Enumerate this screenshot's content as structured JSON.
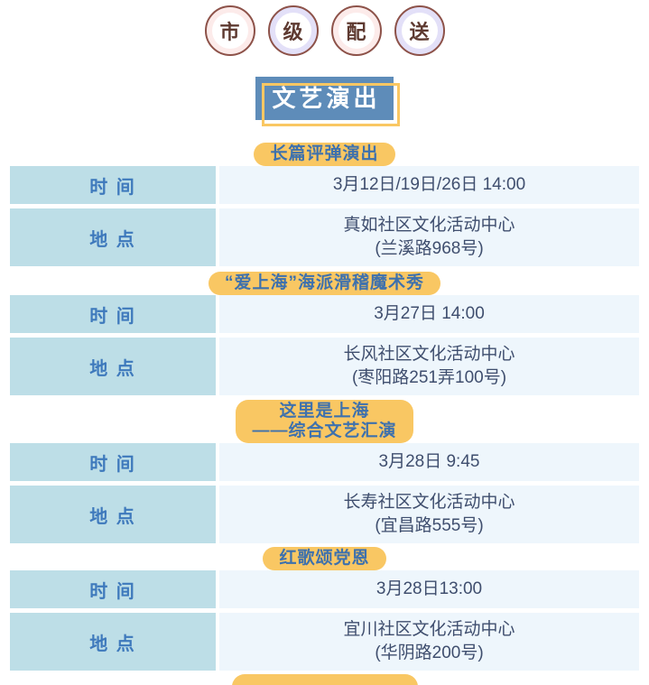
{
  "colors": {
    "header_blue": "#5e8cb9",
    "accent_yellow": "#f9c763",
    "label_cell_bg": "#bddee7",
    "value_cell_bg": "#eef6fc",
    "label_text": "#3e79bc",
    "badge_text": "#3e71ad",
    "value_text": "#3f4e6e",
    "circle_pink": "#fcebea",
    "circle_lavender": "#e3e0f8",
    "circle_border": "#8d5249",
    "circle_text": "#5e3a31"
  },
  "top_badges": {
    "char1": "市",
    "char2": "级",
    "char3": "配",
    "char4": "送"
  },
  "page_title": "文艺演出",
  "row_labels": {
    "time": "时 间",
    "place": "地 点"
  },
  "sections": [
    {
      "title1": "长篇评弹演出",
      "time": "3月12日/19日/26日 14:00",
      "place1": "真如社区文化活动中心",
      "place2": "(兰溪路968号)"
    },
    {
      "title1": "“爱上海”海派滑稽魔术秀",
      "time": "3月27日 14:00",
      "place1": "长风社区文化活动中心",
      "place2": "(枣阳路251弄100号)"
    },
    {
      "title1": "这里是上海",
      "title2": "——综合文艺汇演",
      "time": "3月28日 9:45",
      "place1": "长寿社区文化活动中心",
      "place2": "(宜昌路555号)"
    },
    {
      "title1": "红歌颂党恩",
      "time": "3月28日13:00",
      "place1": "宜川社区文化活动中心",
      "place2": "(华阴路200号)"
    }
  ]
}
